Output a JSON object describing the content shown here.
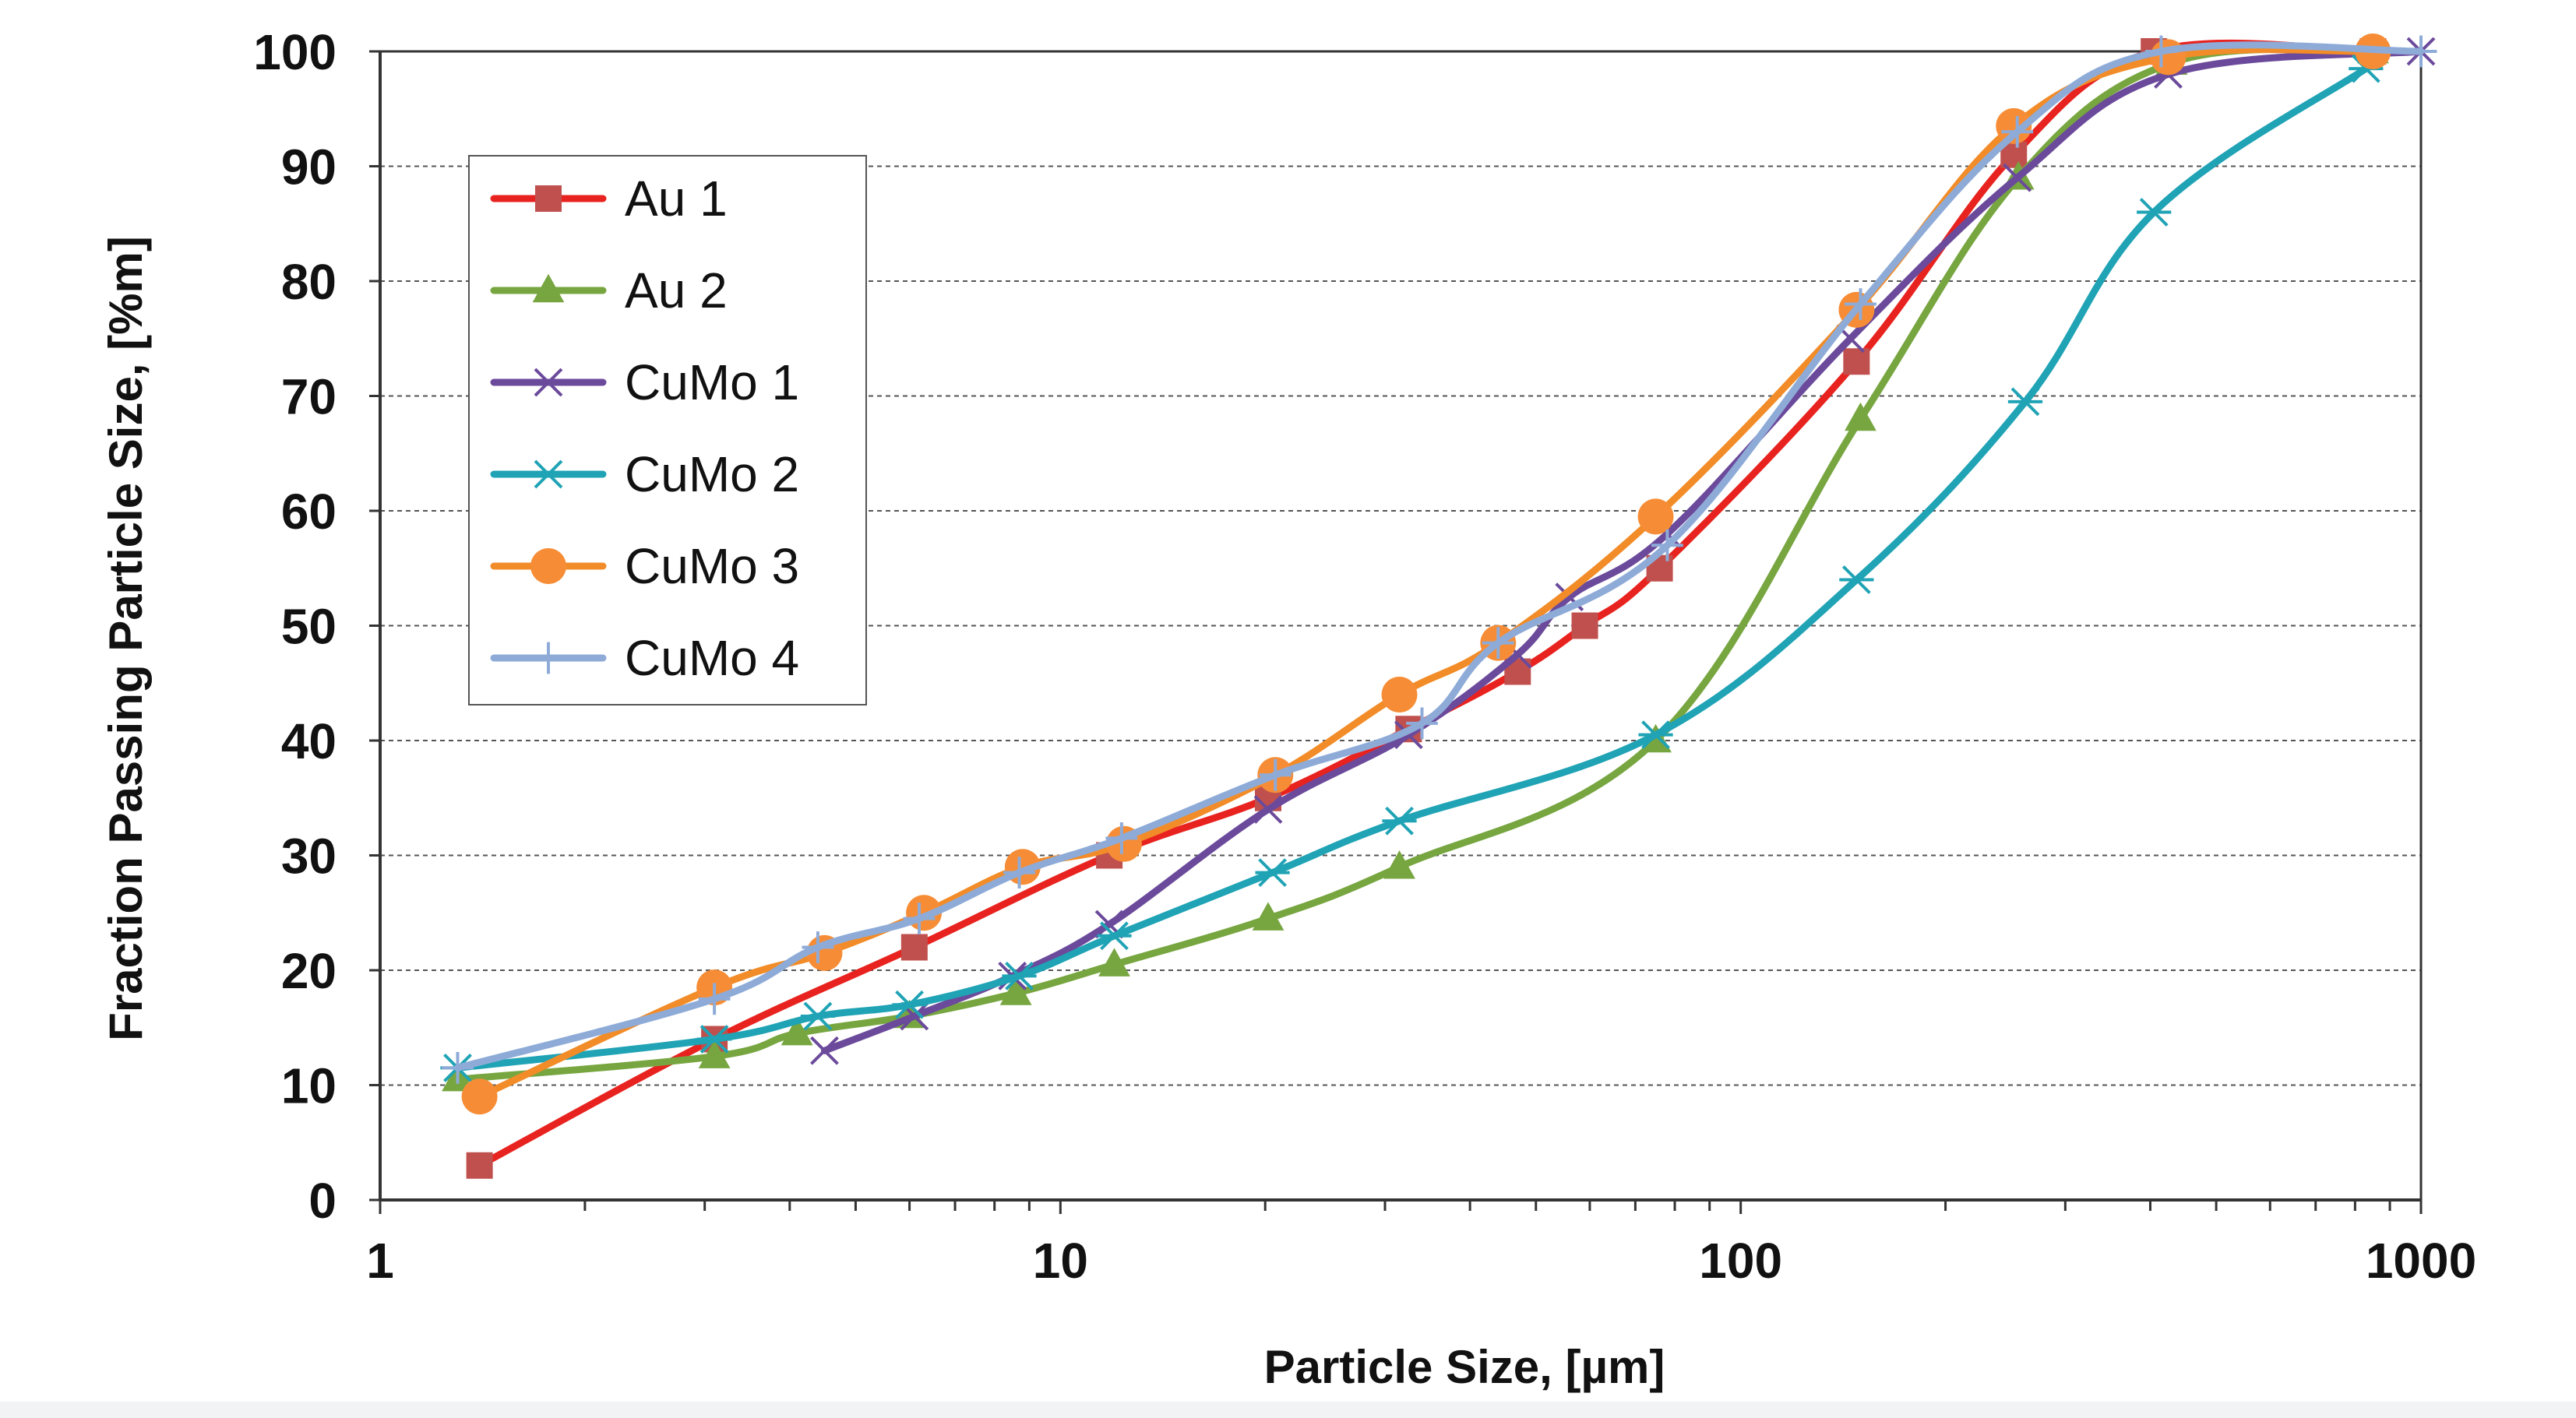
{
  "chart_data": {
    "type": "line",
    "title": "",
    "xlabel": "Particle Size, [µm]",
    "ylabel": "Fraction Passing Particle Size, [%m]",
    "x_scale": "log",
    "xlim": [
      1,
      1000
    ],
    "ylim": [
      0,
      100
    ],
    "x_ticks": [
      1,
      10,
      100,
      1000
    ],
    "x_tick_labels": [
      "1",
      "10",
      "100",
      "1000"
    ],
    "y_ticks": [
      0,
      10,
      20,
      30,
      40,
      50,
      60,
      70,
      80,
      90,
      100
    ],
    "y_tick_labels": [
      "0",
      "10",
      "20",
      "30",
      "40",
      "50",
      "60",
      "70",
      "80",
      "90",
      "100"
    ],
    "grid": "horizontal dashed",
    "legend_position": "top-left",
    "series": [
      {
        "name": "Au 1",
        "color": "#e8231f",
        "marker": "square",
        "marker_color": "#c0504d",
        "points": [
          [
            1.4,
            3
          ],
          [
            3.1,
            14
          ],
          [
            6.1,
            22
          ],
          [
            11.8,
            30
          ],
          [
            20.2,
            35
          ],
          [
            32.5,
            41
          ],
          [
            47,
            46
          ],
          [
            59,
            50
          ],
          [
            76,
            55
          ],
          [
            148,
            73
          ],
          [
            252,
            91
          ],
          [
            405,
            100
          ],
          [
            850,
            100
          ]
        ]
      },
      {
        "name": "Au 2",
        "color": "#77a640",
        "marker": "triangle",
        "marker_color": "#77a640",
        "points": [
          [
            1.3,
            10.5
          ],
          [
            3.1,
            12.5
          ],
          [
            4.1,
            14.5
          ],
          [
            6,
            16
          ],
          [
            8.6,
            18
          ],
          [
            12,
            20.5
          ],
          [
            20.2,
            24.5
          ],
          [
            31.5,
            29
          ],
          [
            75,
            40
          ],
          [
            150,
            68
          ],
          [
            256,
            89
          ],
          [
            430,
            99
          ],
          [
            850,
            100
          ]
        ]
      },
      {
        "name": "CuMo 1",
        "color": "#6b4a9b",
        "marker": "x",
        "marker_color": "#6b4a9b",
        "points": [
          [
            4.5,
            13
          ],
          [
            6.1,
            16
          ],
          [
            8.5,
            19.5
          ],
          [
            11.8,
            24
          ],
          [
            20.2,
            34
          ],
          [
            32.5,
            40.5
          ],
          [
            47,
            47.5
          ],
          [
            56,
            52.5
          ],
          [
            78,
            58
          ],
          [
            145,
            75
          ],
          [
            255,
            89
          ],
          [
            425,
            98
          ],
          [
            1000,
            100
          ]
        ]
      },
      {
        "name": "CuMo 2",
        "color": "#1fa3b5",
        "marker": "asterisk",
        "marker_color": "#1fa3b5",
        "points": [
          [
            1.3,
            11.5
          ],
          [
            3.1,
            14
          ],
          [
            4.4,
            16
          ],
          [
            6,
            17
          ],
          [
            8.7,
            19.5
          ],
          [
            12,
            23
          ],
          [
            20.5,
            28.5
          ],
          [
            31.5,
            33
          ],
          [
            75,
            40.5
          ],
          [
            148,
            54
          ],
          [
            262,
            69.5
          ],
          [
            405,
            86
          ],
          [
            830,
            98.5
          ]
        ]
      },
      {
        "name": "CuMo 3",
        "color": "#f28c28",
        "marker": "circle",
        "marker_color": "#f68d36",
        "points": [
          [
            1.4,
            9
          ],
          [
            3.1,
            18.5
          ],
          [
            4.5,
            21.5
          ],
          [
            6.3,
            25
          ],
          [
            8.8,
            29
          ],
          [
            12.4,
            31
          ],
          [
            20.7,
            37
          ],
          [
            31.5,
            44
          ],
          [
            44,
            48.5
          ],
          [
            75,
            59.5
          ],
          [
            148,
            77.5
          ],
          [
            252,
            93.5
          ],
          [
            425,
            99.5
          ],
          [
            850,
            100
          ]
        ]
      },
      {
        "name": "CuMo 4",
        "color": "#8eabd8",
        "marker": "plus",
        "marker_color": "#8eabd8",
        "points": [
          [
            1.3,
            11.5
          ],
          [
            3.1,
            17.5
          ],
          [
            4.4,
            22
          ],
          [
            6.2,
            24.5
          ],
          [
            8.7,
            28.5
          ],
          [
            12.3,
            31.5
          ],
          [
            20.7,
            37
          ],
          [
            34,
            41.5
          ],
          [
            44,
            48.5
          ],
          [
            78,
            57
          ],
          [
            150,
            78
          ],
          [
            255,
            93
          ],
          [
            415,
            100
          ],
          [
            1000,
            100
          ]
        ]
      }
    ]
  }
}
